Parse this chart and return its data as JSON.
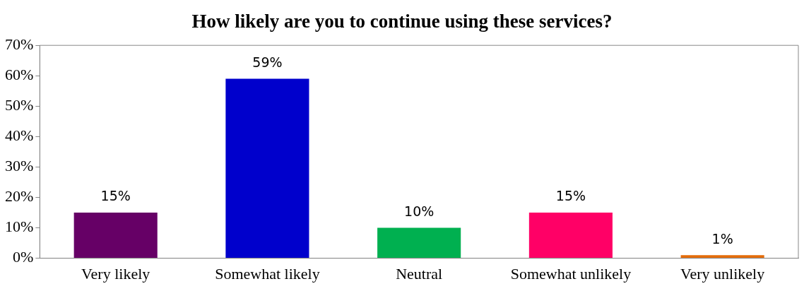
{
  "chart_data": {
    "type": "bar",
    "title": "How likely are you to continue using these services?",
    "categories": [
      "Very likely",
      "Somewhat likely",
      "Neutral",
      "Somewhat unlikely",
      "Very unlikely"
    ],
    "values": [
      15,
      59,
      10,
      15,
      1
    ],
    "colors": [
      "#660066",
      "#0000cc",
      "#00b050",
      "#ff0066",
      "#e46c0a"
    ],
    "ylim": [
      0,
      70
    ],
    "yticks": [
      {
        "value": 0,
        "label": "0%"
      },
      {
        "value": 10,
        "label": "10%"
      },
      {
        "value": 20,
        "label": "20%"
      },
      {
        "value": 30,
        "label": "30%"
      },
      {
        "value": 40,
        "label": "40%"
      },
      {
        "value": 50,
        "label": "50%"
      },
      {
        "value": 60,
        "label": "60%"
      },
      {
        "value": 70,
        "label": "70%"
      }
    ],
    "value_labels": [
      "15%",
      "59%",
      "10%",
      "15%",
      "1%"
    ],
    "grid": false,
    "legend": false
  }
}
